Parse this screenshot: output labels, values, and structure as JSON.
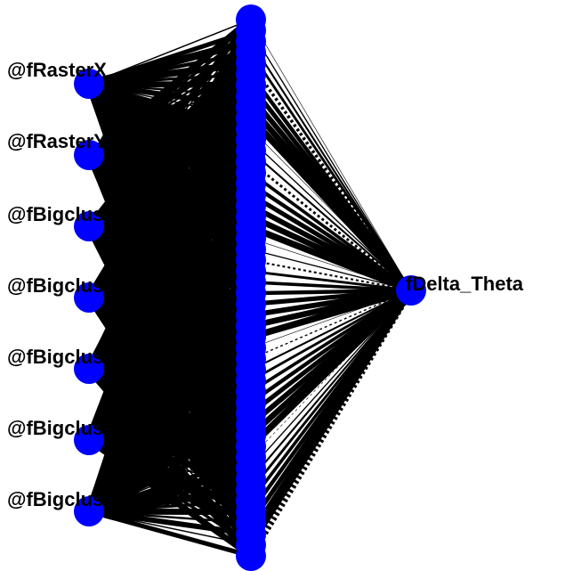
{
  "colors": {
    "node_fill": "#0000ff",
    "edge_color": "#000000",
    "label_color": "#000000",
    "background": "#ffffff"
  },
  "input_nodes": [
    {
      "id": "in1",
      "label": "@fRasterX"
    },
    {
      "id": "in2",
      "label": "@fRasterY"
    },
    {
      "id": "in3",
      "label": "@fBigclusterEnergy"
    },
    {
      "id": "in4",
      "label": "@fBigclusterX"
    },
    {
      "id": "in5",
      "label": "@fBigclusterY"
    },
    {
      "id": "in6",
      "label": "@fBigclusterZ"
    },
    {
      "id": "in7",
      "label": "@fBigclusterTheta"
    }
  ],
  "hidden_layer": {
    "node_count": 50
  },
  "output_nodes": [
    {
      "id": "out1",
      "label": "fDelta_Theta"
    }
  ]
}
